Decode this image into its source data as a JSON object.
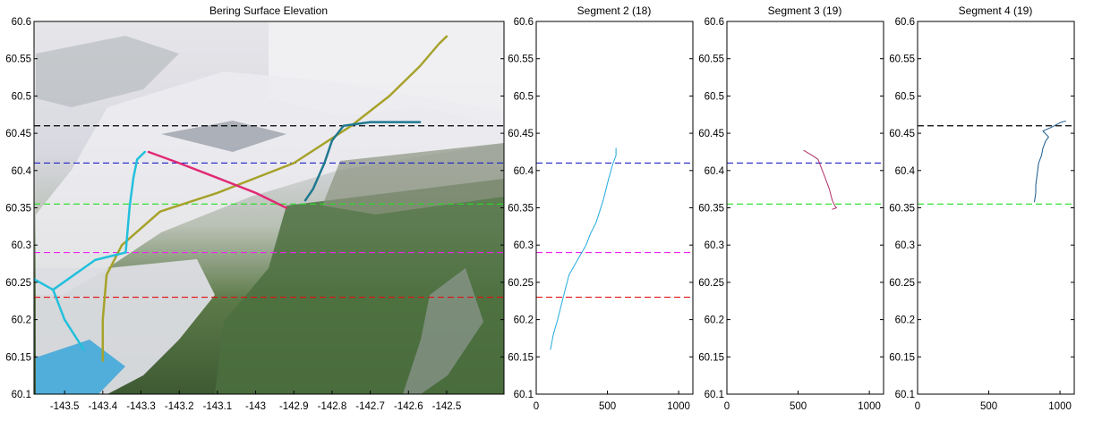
{
  "chart_data": [
    {
      "type": "line",
      "title": "Bering Surface Elevation",
      "background": "satellite-image",
      "xlim": [
        -143.58,
        -142.35
      ],
      "ylim": [
        60.1,
        60.6
      ],
      "x_ticks": [
        "-143.5",
        "-143.4",
        "-143.3",
        "-143.2",
        "-143.1",
        "-143",
        "-142.9",
        "-142.8",
        "-142.7",
        "-142.6",
        "-142.5"
      ],
      "y_ticks": [
        "60.1",
        "60.15",
        "60.2",
        "60.25",
        "60.3",
        "60.35",
        "60.4",
        "60.45",
        "60.5",
        "60.55",
        "60.6"
      ],
      "hlines": [
        {
          "y": 60.46,
          "color": "#000000"
        },
        {
          "y": 60.41,
          "color": "#2020c8"
        },
        {
          "y": 60.355,
          "color": "#22dd22"
        },
        {
          "y": 60.29,
          "color": "#ee22ee"
        },
        {
          "y": 60.23,
          "color": "#dd1111"
        }
      ],
      "series": [
        {
          "color": "#a6a22a",
          "x": [
            -143.4,
            -143.4,
            -143.39,
            -143.35,
            -143.25,
            -143.1,
            -142.9,
            -142.75,
            -142.65,
            -142.57,
            -142.52,
            -142.5
          ],
          "y": [
            60.145,
            60.2,
            60.26,
            60.3,
            60.345,
            60.37,
            60.41,
            60.46,
            60.5,
            60.54,
            60.57,
            60.58
          ]
        },
        {
          "color": "#22c0dc",
          "x": [
            -143.45,
            -143.5,
            -143.53,
            -143.42,
            -143.34,
            -143.33,
            -143.32,
            -143.31,
            -143.29
          ],
          "y": [
            60.16,
            60.2,
            60.24,
            60.28,
            60.29,
            60.35,
            60.39,
            60.415,
            60.425
          ]
        },
        {
          "color": "#22c0dc",
          "x": [
            -143.53,
            -143.6
          ],
          "y": [
            60.24,
            60.26
          ]
        },
        {
          "color": "#e02a74",
          "x": [
            -143.28,
            -143.2,
            -143.1,
            -143.0,
            -142.92
          ],
          "y": [
            60.425,
            60.41,
            60.39,
            60.37,
            60.35
          ]
        },
        {
          "color": "#207890",
          "x": [
            -142.87,
            -142.85,
            -142.82,
            -142.8,
            -142.77,
            -142.7,
            -142.62,
            -142.57
          ],
          "y": [
            60.36,
            60.375,
            60.41,
            60.44,
            60.46,
            60.465,
            60.465,
            60.465
          ]
        }
      ]
    },
    {
      "type": "line",
      "title": "Segment 2 (18)",
      "xlim": [
        0,
        1100
      ],
      "ylim": [
        60.1,
        60.6
      ],
      "x_ticks": [
        "0",
        "500",
        "1000"
      ],
      "y_ticks": [
        "60.1",
        "60.15",
        "60.2",
        "60.25",
        "60.3",
        "60.35",
        "60.4",
        "60.45",
        "60.5",
        "60.55",
        "60.6"
      ],
      "hlines": [
        {
          "y": 60.41,
          "color": "#2020c8"
        },
        {
          "y": 60.29,
          "color": "#ee22ee"
        },
        {
          "y": 60.23,
          "color": "#dd1111"
        }
      ],
      "series": [
        {
          "color": "#22aadd",
          "x": [
            100,
            120,
            150,
            190,
            230,
            260,
            290,
            320,
            350,
            380,
            420,
            470,
            510,
            540,
            560,
            560
          ],
          "y": [
            60.16,
            60.18,
            60.2,
            60.23,
            60.26,
            60.27,
            60.28,
            60.29,
            60.3,
            60.315,
            60.33,
            60.36,
            60.39,
            60.41,
            60.42,
            60.43
          ]
        }
      ]
    },
    {
      "type": "line",
      "title": "Segment 3 (19)",
      "xlim": [
        0,
        1100
      ],
      "ylim": [
        60.1,
        60.6
      ],
      "x_ticks": [
        "0",
        "500",
        "1000"
      ],
      "y_ticks": [
        "60.1",
        "60.15",
        "60.2",
        "60.25",
        "60.3",
        "60.35",
        "60.4",
        "60.45",
        "60.5",
        "60.55",
        "60.6"
      ],
      "hlines": [
        {
          "y": 60.41,
          "color": "#2020c8"
        },
        {
          "y": 60.355,
          "color": "#22dd22"
        }
      ],
      "series": [
        {
          "color": "#b0306a",
          "x": [
            540,
            600,
            640,
            660,
            690,
            720,
            740,
            760,
            770,
            740
          ],
          "y": [
            60.427,
            60.42,
            60.415,
            60.405,
            60.39,
            60.375,
            60.36,
            60.352,
            60.35,
            60.348
          ]
        }
      ]
    },
    {
      "type": "line",
      "title": "Segment 4 (19)",
      "xlim": [
        0,
        1100
      ],
      "ylim": [
        60.1,
        60.6
      ],
      "x_ticks": [
        "0",
        "500",
        "1000"
      ],
      "y_ticks": [
        "60.1",
        "60.15",
        "60.2",
        "60.25",
        "60.3",
        "60.35",
        "60.4",
        "60.45",
        "60.5",
        "60.55",
        "60.6"
      ],
      "hlines": [
        {
          "y": 60.46,
          "color": "#000000"
        },
        {
          "y": 60.355,
          "color": "#22dd22"
        }
      ],
      "series": [
        {
          "color": "#1a5a8a",
          "x": [
            820,
            830,
            830,
            840,
            850,
            870,
            880,
            900,
            920,
            880,
            940,
            980,
            1010,
            1030,
            1040
          ],
          "y": [
            60.358,
            60.37,
            60.38,
            60.395,
            60.41,
            60.42,
            60.43,
            60.44,
            60.445,
            60.453,
            60.458,
            60.462,
            60.465,
            60.466,
            60.466
          ]
        }
      ]
    }
  ]
}
